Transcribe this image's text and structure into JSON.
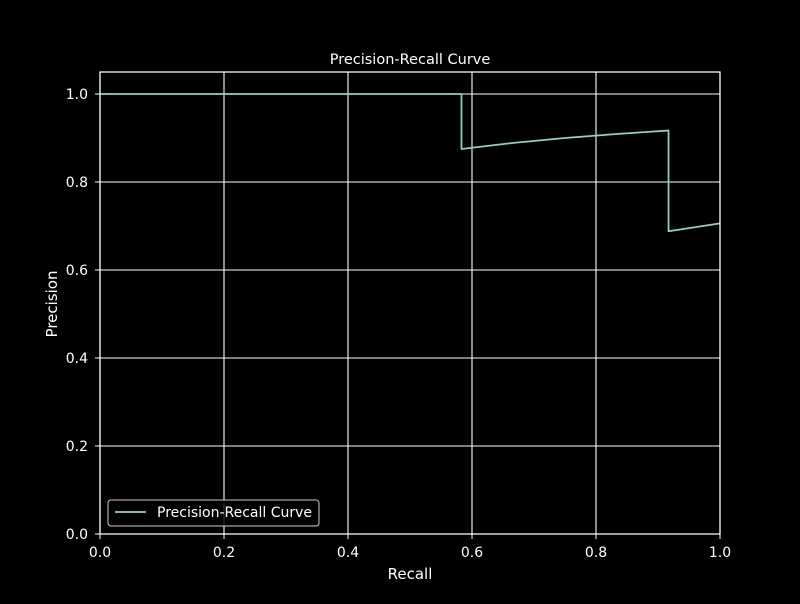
{
  "colors": {
    "background": "#000000",
    "axes": "#ffffff",
    "grid": "#ffffff",
    "text": "#ffffff",
    "series": "#8dd3c7"
  },
  "chart_data": {
    "type": "line",
    "title": "Precision-Recall Curve",
    "xlabel": "Recall",
    "ylabel": "Precision",
    "xlim": [
      0,
      1
    ],
    "ylim": [
      0,
      1.05
    ],
    "xticks": [
      0.0,
      0.2,
      0.4,
      0.6,
      0.8,
      1.0
    ],
    "xtick_labels": [
      "0.0",
      "0.2",
      "0.4",
      "0.6",
      "0.8",
      "1.0"
    ],
    "yticks": [
      0.0,
      0.2,
      0.4,
      0.6,
      0.8,
      1.0
    ],
    "ytick_labels": [
      "0.0",
      "0.2",
      "0.4",
      "0.6",
      "0.8",
      "1.0"
    ],
    "grid": true,
    "legend": {
      "placement": "lower-left",
      "entries": [
        "Precision-Recall Curve"
      ]
    },
    "series": [
      {
        "name": "Precision-Recall Curve",
        "x": [
          0.0,
          0.583,
          0.583,
          0.667,
          0.75,
          0.833,
          0.917,
          0.917,
          1.0
        ],
        "y": [
          1.0,
          1.0,
          0.875,
          0.889,
          0.9,
          0.909,
          0.917,
          0.688,
          0.706
        ]
      }
    ]
  }
}
